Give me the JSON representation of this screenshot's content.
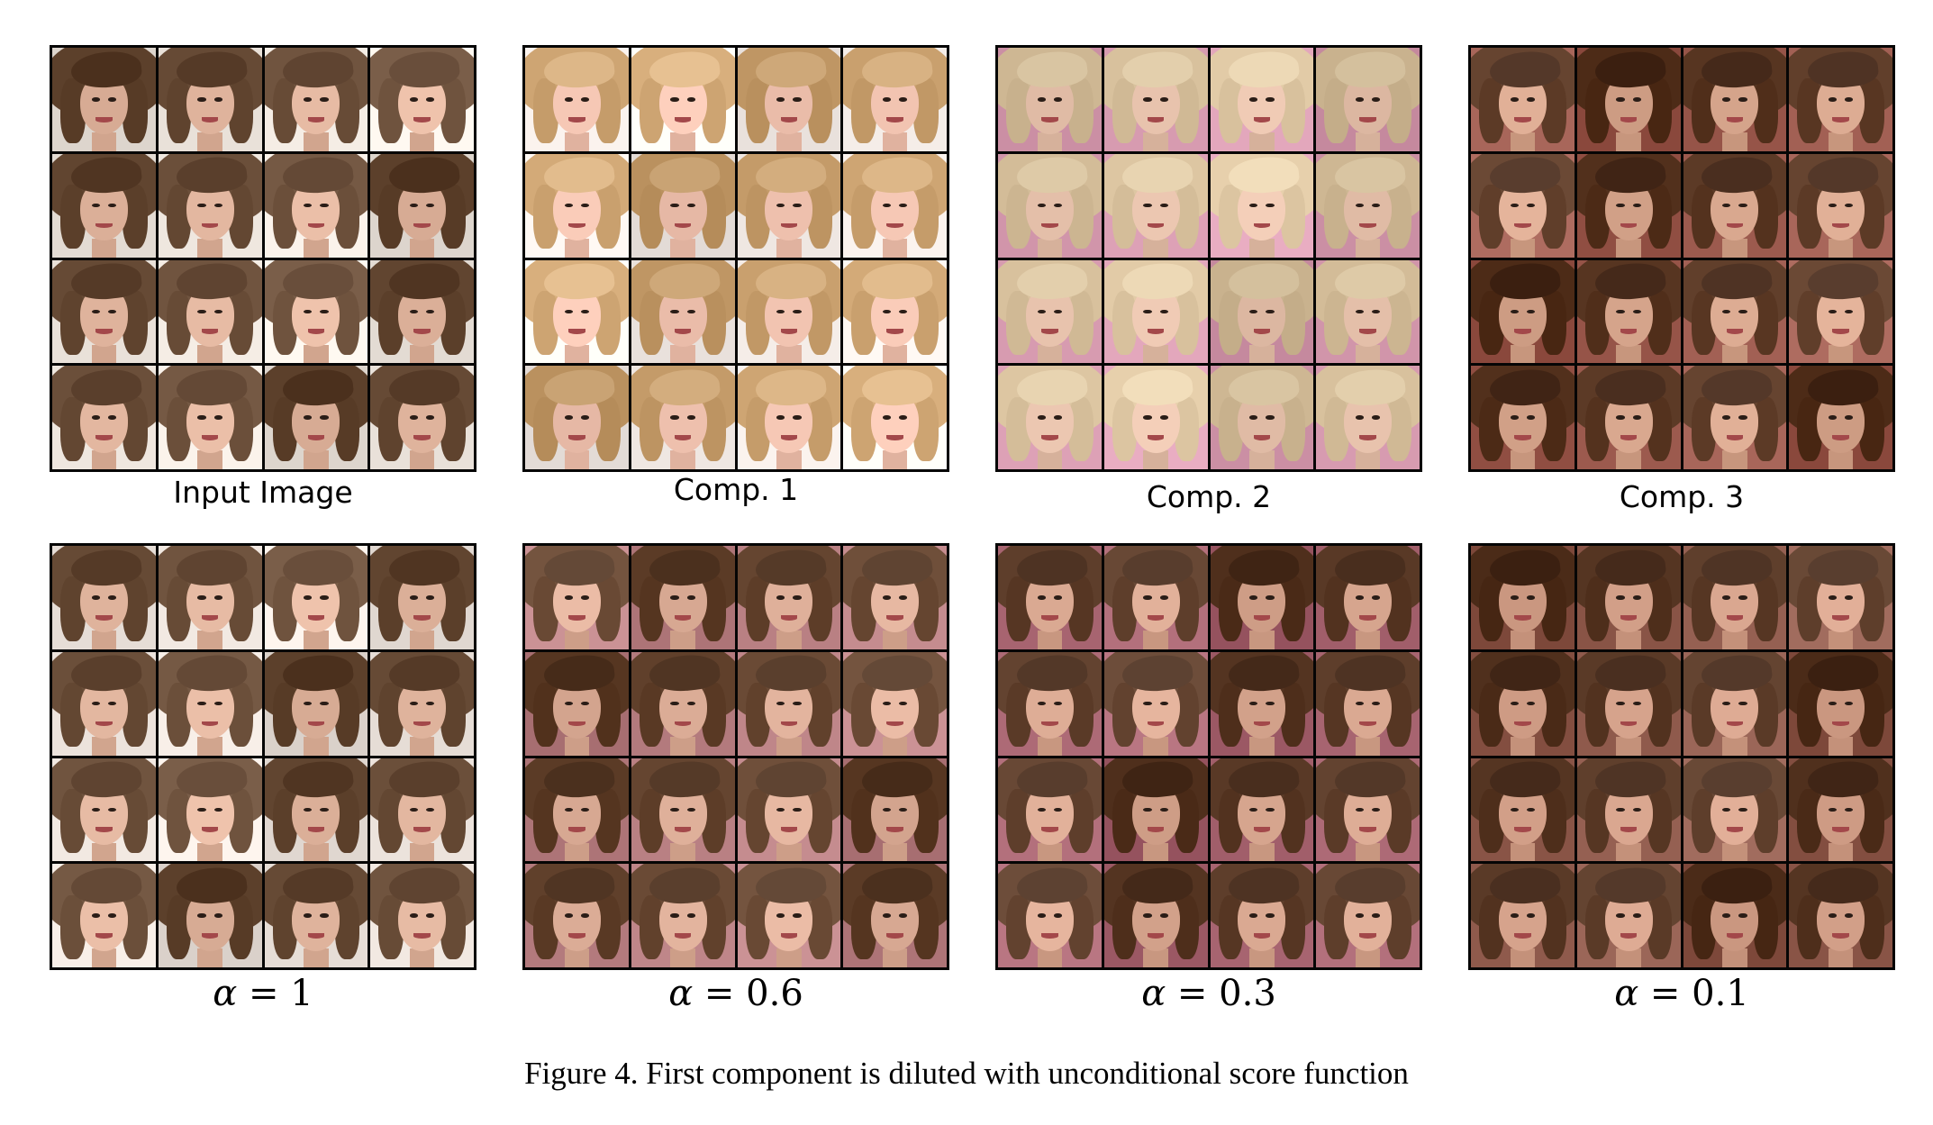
{
  "figure": {
    "caption": "Figure 4. First component is diluted with unconditional score function"
  },
  "panels": [
    {
      "label": "Input Image",
      "style": "sans",
      "palette": {
        "hair": "#6b4f3a",
        "fringe": "#5a3f2c",
        "skin": "#e3b7a0",
        "bg": "#efe7df"
      }
    },
    {
      "label": "Comp. 1",
      "style": "sans",
      "palette": {
        "hair": "#c9a06e",
        "fringe": "#d8b283",
        "skin": "#f2c4b1",
        "bg": "#f5ede8"
      }
    },
    {
      "label": "Comp. 2",
      "style": "sans",
      "palette": {
        "hair": "#d8c19d",
        "fringe": "#e3cfac",
        "skin": "#e8c3ad",
        "bg": "#d79bb0"
      }
    },
    {
      "label": "Comp. 3",
      "style": "sans",
      "palette": {
        "hair": "#5c3a26",
        "fringe": "#4a2e1f",
        "skin": "#d9a88f",
        "bg": "#9c5a4e"
      }
    },
    {
      "label_var": "α",
      "label_op": " = ",
      "label_val": "1",
      "style": "math",
      "palette": {
        "hair": "#6b4f3a",
        "fringe": "#5a3f2c",
        "skin": "#e3b7a0",
        "bg": "#ece3dc"
      }
    },
    {
      "label_var": "α",
      "label_op": " = ",
      "label_val": "0.6",
      "style": "math",
      "palette": {
        "hair": "#654530",
        "fringe": "#553a28",
        "skin": "#dfb09a",
        "bg": "#b98083"
      }
    },
    {
      "label_var": "α",
      "label_op": " = ",
      "label_val": "0.3",
      "style": "math",
      "palette": {
        "hair": "#5e3e2b",
        "fringe": "#4e3323",
        "skin": "#daa992",
        "bg": "#a76470"
      }
    },
    {
      "label_var": "α",
      "label_op": " = ",
      "label_val": "0.1",
      "style": "math",
      "palette": {
        "hair": "#5a3a27",
        "fringe": "#4a2f20",
        "skin": "#d6a38c",
        "bg": "#8f5a4c"
      }
    }
  ]
}
